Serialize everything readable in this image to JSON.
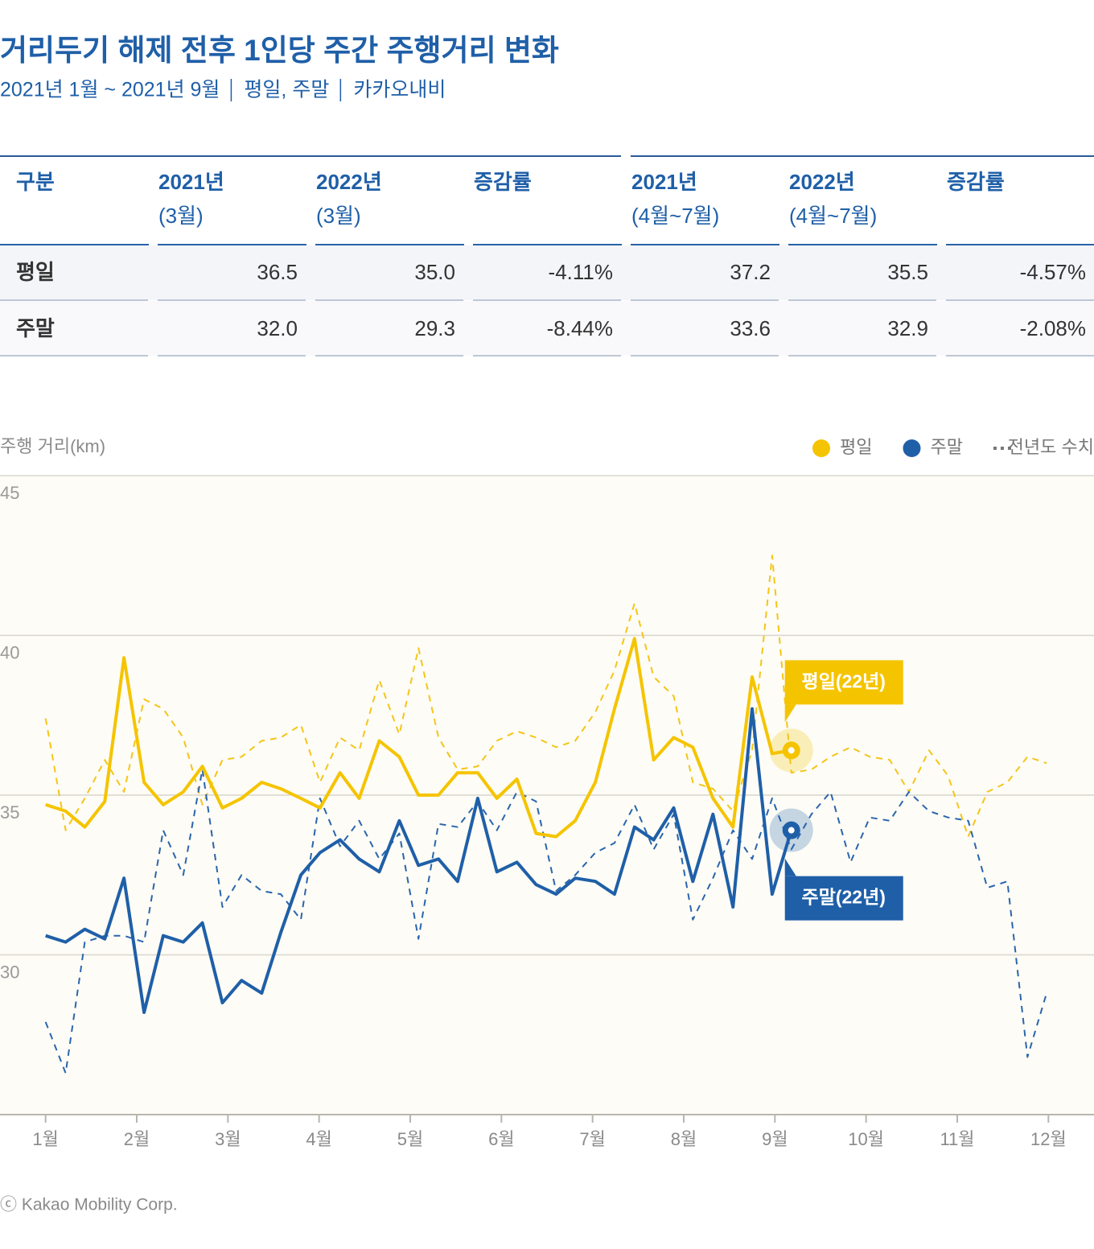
{
  "header": {
    "title": "거리두기 해제 전후 1인당 주간 주행거리 변화",
    "subtitle": [
      "2021년 1월 ~ 2021년 9월",
      "평일, 주말",
      "카카오내비"
    ]
  },
  "table": {
    "header": [
      [
        "구분"
      ],
      [
        "2021년",
        "(3월)"
      ],
      [
        "2022년",
        "(3월)"
      ],
      [
        "증감률"
      ],
      [
        "2021년",
        "(4월~7월)"
      ],
      [
        "2022년",
        "(4월~7월)"
      ],
      [
        "증감률"
      ]
    ],
    "rows": [
      [
        "평일",
        "36.5",
        "35.0",
        "-4.11%",
        "37.2",
        "35.5",
        "-4.57%"
      ],
      [
        "주말",
        "32.0",
        "29.3",
        "-8.44%",
        "33.6",
        "32.9",
        "-2.08%"
      ]
    ]
  },
  "chart_data": {
    "type": "line",
    "y_label": "주행 거리(km)",
    "xlim": [
      0.5,
      12.5
    ],
    "xticks": [
      {
        "value": 1,
        "label": "1월"
      },
      {
        "value": 2,
        "label": "2월"
      },
      {
        "value": 3,
        "label": "3월"
      },
      {
        "value": 4,
        "label": "4월"
      },
      {
        "value": 5,
        "label": "5월"
      },
      {
        "value": 6,
        "label": "6월"
      },
      {
        "value": 7,
        "label": "7월"
      },
      {
        "value": 8,
        "label": "8월"
      },
      {
        "value": 9,
        "label": "9월"
      },
      {
        "value": 10,
        "label": "10월"
      },
      {
        "value": 11,
        "label": "11월"
      },
      {
        "value": 12,
        "label": "12월"
      }
    ],
    "ylim": [
      25,
      45
    ],
    "yticks": [
      30,
      35,
      40,
      45
    ],
    "grid": true,
    "prev_year_label": "전년도 수치",
    "x": [
      1.0,
      1.22,
      1.43,
      1.65,
      1.86,
      2.08,
      2.29,
      2.51,
      2.72,
      2.94,
      3.15,
      3.37,
      3.58,
      3.8,
      4.01,
      4.23,
      4.44,
      4.66,
      4.88,
      5.09,
      5.31,
      5.52,
      5.74,
      5.95,
      6.17,
      6.38,
      6.6,
      6.81,
      7.03,
      7.24,
      7.46,
      7.67,
      7.89,
      8.1,
      8.32,
      8.54,
      8.75,
      8.97,
      9.18,
      9.4,
      9.61,
      9.83,
      10.04,
      10.26,
      10.47,
      10.69,
      10.9,
      11.12,
      11.33,
      11.55,
      11.77,
      11.98
    ],
    "series": [
      {
        "color": "#f5c518",
        "dashed": true,
        "values": [
          37.4,
          33.9,
          34.9,
          36.1,
          35.1,
          38.0,
          37.7,
          36.8,
          34.7,
          36.1,
          36.2,
          36.7,
          36.8,
          37.2,
          35.4,
          36.8,
          36.4,
          38.6,
          36.9,
          39.6,
          36.8,
          35.8,
          35.9,
          36.7,
          37.0,
          36.8,
          36.5,
          36.7,
          37.6,
          38.9,
          41.0,
          38.7,
          38.1,
          35.4,
          35.2,
          34.5,
          36.4,
          42.5,
          35.7,
          35.8,
          36.2,
          36.5,
          36.2,
          36.1,
          35.1,
          36.4,
          35.6,
          33.7,
          35.1,
          35.4,
          36.2,
          36.0
        ]
      },
      {
        "color": "#2a65ad",
        "dashed": true,
        "values": [
          27.9,
          26.3,
          30.4,
          30.6,
          30.6,
          30.4,
          33.9,
          32.5,
          35.8,
          31.5,
          32.5,
          32.0,
          31.9,
          31.1,
          34.9,
          33.4,
          34.2,
          33.0,
          33.8,
          30.5,
          34.1,
          34.0,
          34.8,
          33.9,
          35.1,
          34.8,
          32.0,
          32.5,
          33.2,
          33.5,
          34.7,
          33.3,
          34.4,
          31.1,
          32.4,
          33.9,
          33.0,
          34.9,
          33.3,
          34.4,
          35.1,
          32.9,
          34.3,
          34.2,
          35.1,
          34.5,
          34.3,
          34.2,
          32.1,
          32.3,
          26.8,
          28.8
        ]
      },
      {
        "name": "평일",
        "color": "#f5c400",
        "callout": "평일(22년)",
        "values": [
          34.7,
          34.5,
          34.0,
          34.8,
          39.3,
          35.4,
          34.7,
          35.1,
          35.9,
          34.6,
          34.9,
          35.4,
          35.2,
          34.9,
          34.6,
          35.7,
          34.9,
          36.7,
          36.2,
          35.0,
          35.0,
          35.7,
          35.7,
          34.9,
          35.5,
          33.8,
          33.7,
          34.2,
          35.4,
          37.7,
          39.9,
          36.1,
          36.8,
          36.5,
          34.9,
          34.0,
          38.7,
          36.3,
          36.4,
          null,
          null,
          null,
          null,
          null,
          null,
          null,
          null,
          null,
          null,
          null,
          null,
          null
        ]
      },
      {
        "name": "주말",
        "color": "#1f5fa8",
        "callout": "주말(22년)",
        "values": [
          30.6,
          30.4,
          30.8,
          30.5,
          32.4,
          28.2,
          30.6,
          30.4,
          31.0,
          28.5,
          29.2,
          28.8,
          30.7,
          32.5,
          33.2,
          33.6,
          33.0,
          32.6,
          34.2,
          32.8,
          33.0,
          32.3,
          34.9,
          32.6,
          32.9,
          32.2,
          31.9,
          32.4,
          32.3,
          31.9,
          34.0,
          33.6,
          34.6,
          32.3,
          34.4,
          31.5,
          37.7,
          31.9,
          33.9,
          null,
          null,
          null,
          null,
          null,
          null,
          null,
          null,
          null,
          null,
          null,
          null,
          null
        ]
      }
    ]
  },
  "footer": "ⓒ Kakao Mobility Corp."
}
